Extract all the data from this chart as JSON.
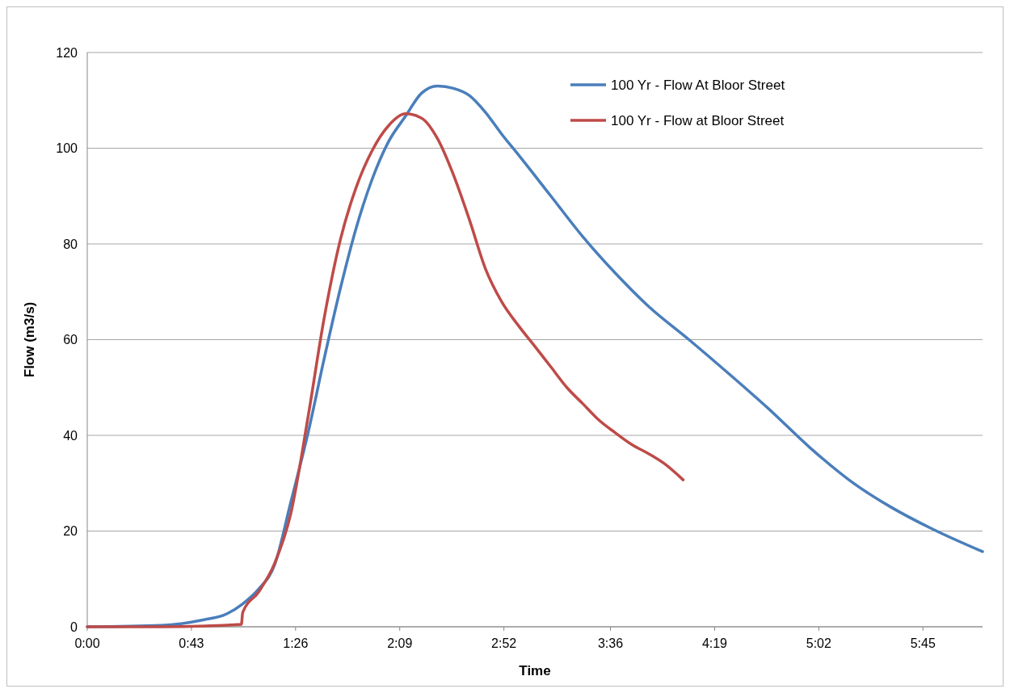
{
  "chart_data": {
    "type": "line",
    "xlabel": "Time",
    "ylabel": "Flow (m3/s)",
    "xlim": [
      0,
      6.16
    ],
    "ylim": [
      0,
      120
    ],
    "xticks": [
      {
        "value": 0,
        "label": "0:00"
      },
      {
        "value": 0.7167,
        "label": "0:43"
      },
      {
        "value": 1.4333,
        "label": "1:26"
      },
      {
        "value": 2.15,
        "label": "2:09"
      },
      {
        "value": 2.8667,
        "label": "2:52"
      },
      {
        "value": 3.6,
        "label": "3:36"
      },
      {
        "value": 4.3167,
        "label": "4:19"
      },
      {
        "value": 5.0333,
        "label": "5:02"
      },
      {
        "value": 5.75,
        "label": "5:45"
      }
    ],
    "yticks": [
      0,
      20,
      40,
      60,
      80,
      100,
      120
    ],
    "grid": "y",
    "legend": "top right",
    "line_style": "solid",
    "marker": "none",
    "series": [
      {
        "name": "100 Yr - Flow At Bloor Street",
        "color": "#4a7ebb",
        "x": [
          0,
          0.51,
          0.79,
          0.96,
          1.07,
          1.18,
          1.29,
          1.4,
          1.52,
          1.63,
          1.74,
          1.85,
          1.96,
          2.07,
          2.19,
          2.3,
          2.41,
          2.52,
          2.63,
          2.74,
          2.85,
          2.97,
          3.19,
          3.41,
          3.63,
          3.86,
          4.14,
          4.41,
          4.69,
          4.97,
          5.25,
          5.53,
          5.81,
          6.16
        ],
        "values": [
          0,
          0.3,
          1.4,
          2.7,
          4.8,
          7.9,
          13,
          26,
          40.6,
          56,
          70.5,
          83.3,
          93.5,
          101.2,
          106.7,
          111.5,
          113,
          112.5,
          111,
          107.5,
          103,
          98.5,
          90,
          81.5,
          74,
          67,
          60,
          53,
          45.5,
          37.5,
          30.5,
          25,
          20.5,
          15.7
        ]
      },
      {
        "name": "100 Yr - Flow at Bloor Street",
        "color": "#be4b48",
        "x": [
          0,
          0.5,
          1.06,
          1.07,
          1.18,
          1.29,
          1.4,
          1.52,
          1.63,
          1.74,
          1.85,
          1.96,
          2.07,
          2.19,
          2.3,
          2.41,
          2.52,
          2.63,
          2.74,
          2.85,
          2.97,
          3.08,
          3.19,
          3.3,
          3.41,
          3.52,
          3.63,
          3.75,
          3.86,
          3.97,
          4.1
        ],
        "values": [
          0,
          0,
          0.5,
          3,
          7.3,
          13.3,
          23.6,
          44,
          64.5,
          80.7,
          91.8,
          99.5,
          104.6,
          107.2,
          106.3,
          102,
          94.4,
          85,
          74.8,
          68,
          62.8,
          58.6,
          54.3,
          50,
          46.6,
          43.2,
          40.6,
          38,
          36.2,
          34.1,
          30.7
        ]
      }
    ]
  }
}
